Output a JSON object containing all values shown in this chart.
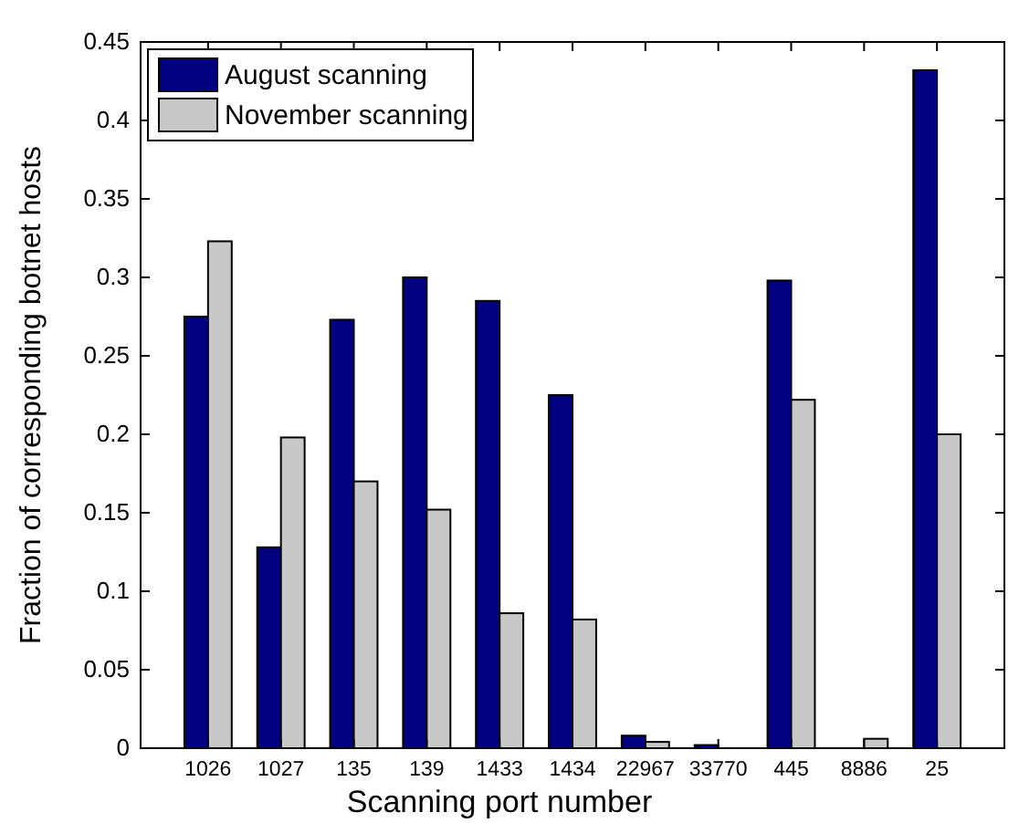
{
  "chart_data": {
    "type": "bar",
    "xlabel": "Scanning port number",
    "ylabel": "Fraction of corresponding botnet hosts",
    "categories": [
      "1026",
      "1027",
      "135",
      "139",
      "1433",
      "1434",
      "22967",
      "33770",
      "445",
      "8886",
      "25"
    ],
    "series": [
      {
        "name": "August scanning",
        "color": "#000080",
        "values": [
          0.275,
          0.128,
          0.273,
          0.3,
          0.285,
          0.225,
          0.008,
          0.002,
          0.298,
          0,
          0.432
        ]
      },
      {
        "name": "November scanning",
        "color": "#c8c8c8",
        "values": [
          0.323,
          0.198,
          0.17,
          0.152,
          0.086,
          0.082,
          0.004,
          0,
          0.222,
          0.006,
          0.2
        ]
      }
    ],
    "ylim": [
      0,
      0.45
    ],
    "yticks": [
      0,
      0.05,
      0.1,
      0.15,
      0.2,
      0.25,
      0.3,
      0.35,
      0.4,
      0.45
    ],
    "legend": "top left",
    "grid": false
  }
}
